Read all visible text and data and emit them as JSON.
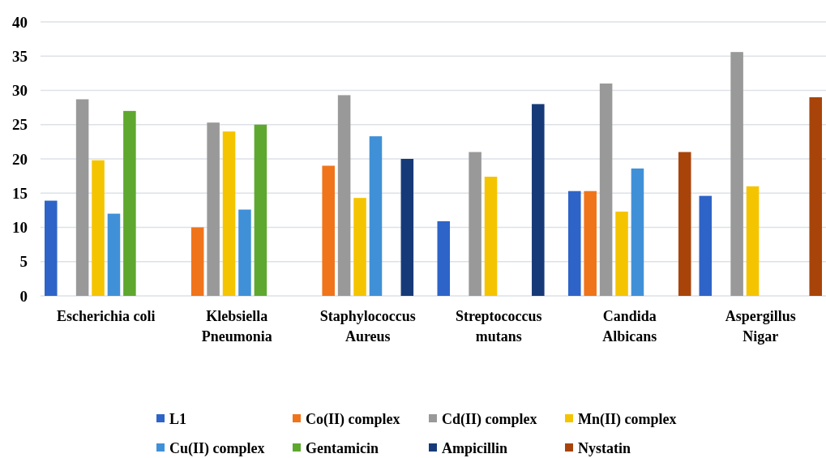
{
  "chart_data": {
    "type": "bar",
    "categories": [
      "Escherichia coli",
      "Klebsiella\nPneumonia",
      "Staphylococcus\nAureus",
      "Streptococcus\nmutans",
      "Candida\nAlbicans",
      "Aspergillus\nNigar"
    ],
    "series": [
      {
        "name": "L1",
        "color": "#2e64c8",
        "values": [
          13.9,
          null,
          null,
          10.9,
          15.3,
          14.6
        ]
      },
      {
        "name": "Co(II) complex",
        "color": "#f0741a",
        "values": [
          null,
          10,
          19,
          null,
          15.3,
          null
        ]
      },
      {
        "name": "Cd(II) complex",
        "color": "#999999",
        "values": [
          28.7,
          25.3,
          29.3,
          21,
          31,
          35.6
        ]
      },
      {
        "name": "Mn(II) complex",
        "color": "#f5c400",
        "values": [
          19.8,
          24,
          14.3,
          17.4,
          12.3,
          16
        ]
      },
      {
        "name": "Cu(II) complex",
        "color": "#4090d8",
        "values": [
          12,
          12.6,
          23.3,
          null,
          18.6,
          null
        ]
      },
      {
        "name": "Gentamicin",
        "color": "#5fa830",
        "values": [
          27,
          25,
          null,
          null,
          null,
          null
        ]
      },
      {
        "name": "Ampicillin",
        "color": "#163a78",
        "values": [
          null,
          null,
          20,
          28,
          null,
          null
        ]
      },
      {
        "name": "Nystatin",
        "color": "#a8440a",
        "values": [
          null,
          null,
          null,
          null,
          21,
          29
        ]
      }
    ],
    "ylim": [
      0,
      40
    ],
    "yticks": [
      0,
      5,
      10,
      15,
      20,
      25,
      30,
      35,
      40
    ],
    "grid": "y",
    "legend": "bottom"
  }
}
